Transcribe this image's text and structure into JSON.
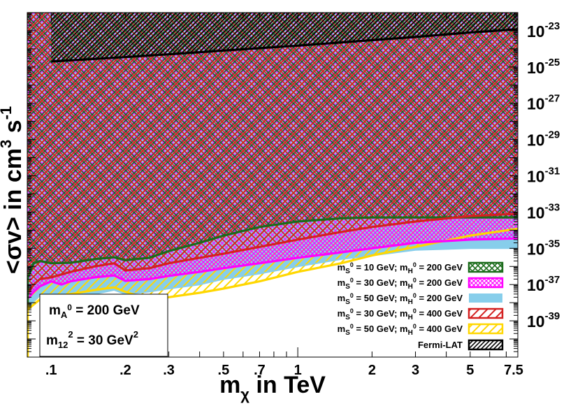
{
  "chart_data": {
    "type": "area",
    "xscale": "log",
    "yscale": "log",
    "xlim": [
      0.08,
      7.8
    ],
    "ylim": [
      1e-41,
      1e-22
    ],
    "grid": false,
    "legend_placement": "bottom-right",
    "xlabel": {
      "main": "m",
      "sub": "χ",
      "rest": " in TeV"
    },
    "ylabel": {
      "pre": "<σv> in cm",
      "sup1": "3",
      "mid": " s",
      "sup2": "-1"
    },
    "x_ticks": [
      {
        "value": 0.1,
        "label": ".1"
      },
      {
        "value": 0.2,
        "label": ".2"
      },
      {
        "value": 0.3,
        "label": ".3"
      },
      {
        "value": 0.5,
        "label": ".5"
      },
      {
        "value": 0.7,
        "label": ".7"
      },
      {
        "value": 1,
        "label": "1"
      },
      {
        "value": 2,
        "label": "2"
      },
      {
        "value": 3,
        "label": "3"
      },
      {
        "value": 5,
        "label": "5"
      },
      {
        "value": 7.5,
        "label": "7.5"
      }
    ],
    "y_ticks": [
      {
        "exp": -23,
        "base": "10",
        "sup": "-23"
      },
      {
        "exp": -25,
        "base": "10",
        "sup": "-25"
      },
      {
        "exp": -27,
        "base": "10",
        "sup": "-27"
      },
      {
        "exp": -29,
        "base": "10",
        "sup": "-29"
      },
      {
        "exp": -31,
        "base": "10",
        "sup": "-31"
      },
      {
        "exp": -33,
        "base": "10",
        "sup": "-33"
      },
      {
        "exp": -35,
        "base": "10",
        "sup": "-35"
      },
      {
        "exp": -37,
        "base": "10",
        "sup": "-37"
      },
      {
        "exp": -39,
        "base": "10",
        "sup": "-39"
      }
    ],
    "annotations": [
      {
        "pre": "m",
        "sub": "A",
        "sup": "0",
        "post": " = 200 GeV"
      },
      {
        "pre": "m",
        "sub": "12",
        "sup": "2",
        "post": " = 30 GeV",
        "sup2": "2"
      }
    ],
    "series": [
      {
        "name": {
          "ms": "10",
          "mh": "200"
        },
        "style": "crosshatch",
        "color": "#1a6b1a",
        "x": [
          0.08,
          0.085,
          0.09,
          0.1,
          0.12,
          0.15,
          0.18,
          0.2,
          0.25,
          0.3,
          0.4,
          0.5,
          0.7,
          1,
          1.5,
          2,
          3,
          5,
          7.8
        ],
        "y": [
          2e-37,
          1.5e-36,
          2e-36,
          1.5e-36,
          1.6e-36,
          2.5e-36,
          3.2e-36,
          2.2e-36,
          3e-36,
          7e-36,
          2e-35,
          5e-35,
          1.5e-34,
          3e-34,
          4.5e-34,
          5e-34,
          5e-34,
          5e-34,
          5e-34
        ]
      },
      {
        "name": {
          "ms": "30",
          "mh": "200"
        },
        "style": "crosshatch",
        "color": "#ff00ff",
        "x": [
          0.08,
          0.085,
          0.09,
          0.1,
          0.11,
          0.12,
          0.15,
          0.18,
          0.2,
          0.25,
          0.3,
          0.4,
          0.5,
          0.7,
          1,
          1.5,
          2,
          3,
          5,
          7.8
        ],
        "y": [
          1.5e-38,
          4e-38,
          8e-38,
          1.5e-37,
          1e-37,
          1.5e-37,
          2.5e-37,
          3.2e-37,
          1.6e-37,
          2e-37,
          3e-37,
          5e-37,
          8e-37,
          1.5e-36,
          3e-36,
          6e-36,
          1e-35,
          2e-35,
          3e-35,
          3.5e-35
        ]
      },
      {
        "name": {
          "ms": "50",
          "mh": "200"
        },
        "style": "solid",
        "color": "#87ceeb",
        "x": [
          0.08,
          0.085,
          0.09,
          0.1,
          0.11,
          0.12,
          0.15,
          0.18,
          0.2,
          0.25,
          0.3,
          0.4,
          0.5,
          0.7,
          1,
          1.5,
          2,
          3,
          5,
          7.8
        ],
        "y": [
          4e-39,
          1.2e-38,
          2.5e-38,
          3e-38,
          2.2e-38,
          2.3e-38,
          3e-38,
          5e-38,
          3e-38,
          4e-38,
          6e-38,
          1e-37,
          2e-37,
          4e-37,
          1e-36,
          2.5e-36,
          4e-36,
          8e-36,
          1e-35,
          1e-35
        ]
      },
      {
        "name": {
          "ms": "30",
          "mh": "400"
        },
        "style": "hatch",
        "color": "#d42020",
        "x": [
          0.08,
          0.085,
          0.09,
          0.1,
          0.12,
          0.15,
          0.18,
          0.2,
          0.25,
          0.3,
          0.4,
          0.5,
          0.7,
          1,
          1.5,
          2,
          3,
          5,
          7.8
        ],
        "y": [
          3e-38,
          1e-37,
          2e-37,
          2.5e-37,
          5e-37,
          1e-36,
          1.5e-36,
          6e-37,
          8e-37,
          1.5e-36,
          3e-36,
          5e-36,
          1.2e-35,
          3e-35,
          8e-35,
          1.5e-34,
          3e-34,
          6e-34,
          8e-34
        ]
      },
      {
        "name": {
          "ms": "50",
          "mh": "400"
        },
        "style": "hatch",
        "color": "#ffd700",
        "x": [
          0.08,
          0.085,
          0.09,
          0.1,
          0.12,
          0.15,
          0.18,
          0.2,
          0.25,
          0.3,
          0.4,
          0.5,
          0.7,
          1,
          1.5,
          2,
          3,
          5,
          7.8
        ],
        "y": [
          4e-39,
          8e-39,
          1.5e-38,
          2e-38,
          3e-38,
          5e-38,
          7e-38,
          4e-38,
          1.5e-38,
          2e-38,
          3.5e-38,
          6e-38,
          1.5e-37,
          5e-37,
          1.5e-36,
          4e-36,
          1.2e-35,
          5e-35,
          1.2e-34
        ]
      },
      {
        "name": "Fermi-LAT",
        "style": "hatch-dense",
        "color": "#000000",
        "x": [
          0.1,
          0.2,
          0.3,
          0.5,
          1,
          2,
          3,
          5,
          7.8
        ],
        "y": [
          2e-25,
          3.5e-25,
          5e-25,
          8e-25,
          1.5e-24,
          3e-24,
          4.5e-24,
          8e-24,
          1.2e-23
        ]
      }
    ],
    "legend_template": {
      "pre_s": "m",
      "sub_s": "S",
      "sup_s": "0",
      "eq1": " = ",
      "unit": " GeV; ",
      "pre_h": "m",
      "sub_h": "H",
      "sup_h": "0",
      "eq2": " = ",
      "unit2": " GeV"
    }
  }
}
